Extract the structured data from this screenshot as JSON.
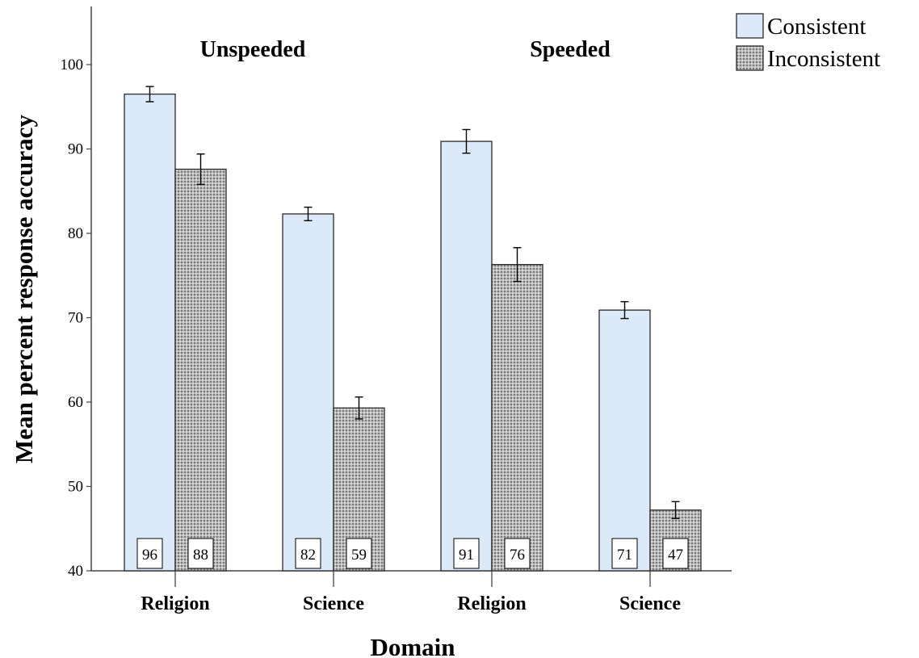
{
  "chart_data": {
    "type": "bar",
    "xlabel": "Domain",
    "ylabel": "Mean percent response accuracy",
    "ylim": [
      40,
      100
    ],
    "yticks": [
      40,
      50,
      60,
      70,
      80,
      90,
      100
    ],
    "grid": false,
    "legend_position": "top-right",
    "groups": [
      "Unspeeded",
      "Speeded"
    ],
    "categories": [
      "Religion",
      "Science",
      "Religion",
      "Science"
    ],
    "category_group": [
      0,
      0,
      1,
      1
    ],
    "series": [
      {
        "name": "Consistent",
        "color": "#dbe9f9",
        "pattern": "solid",
        "values": [
          96.5,
          82.3,
          90.9,
          70.9
        ],
        "error": [
          0.9,
          0.8,
          1.4,
          1.0
        ],
        "labels": [
          "96",
          "82",
          "91",
          "71"
        ]
      },
      {
        "name": "Inconsistent",
        "color": "#a9a9a9",
        "pattern": "dotted",
        "values": [
          87.6,
          59.3,
          76.3,
          47.2
        ],
        "error": [
          1.8,
          1.3,
          2.0,
          1.0
        ],
        "labels": [
          "88",
          "59",
          "76",
          "47"
        ]
      }
    ]
  }
}
